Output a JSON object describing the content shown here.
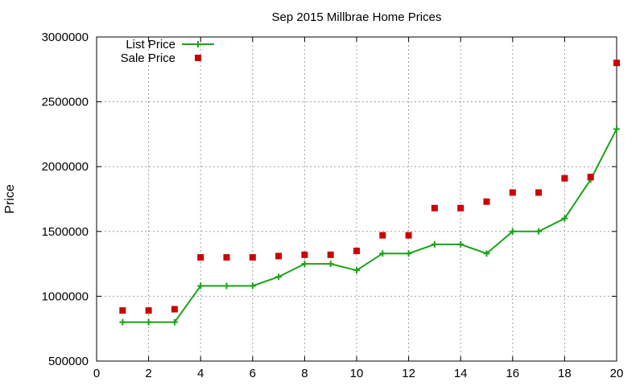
{
  "chart_data": {
    "type": "line",
    "title": "Sep 2015 Millbrae Home Prices",
    "xlabel": "",
    "ylabel": "Price",
    "xlim": [
      0,
      20
    ],
    "ylim": [
      500000,
      3000000
    ],
    "x_ticks": [
      0,
      2,
      4,
      6,
      8,
      10,
      12,
      14,
      16,
      18,
      20
    ],
    "y_ticks": [
      500000,
      1000000,
      1500000,
      2000000,
      2500000,
      3000000
    ],
    "grid": true,
    "legend_position": "top-left",
    "series": [
      {
        "name": "List Price",
        "style": "line-with-plus-markers",
        "color": "#1aa31a",
        "x": [
          1,
          2,
          3,
          4,
          5,
          6,
          7,
          8,
          9,
          10,
          11,
          12,
          13,
          14,
          15,
          16,
          17,
          18,
          19,
          20
        ],
        "values": [
          800000,
          800000,
          800000,
          1080000,
          1080000,
          1080000,
          1150000,
          1250000,
          1250000,
          1200000,
          1330000,
          1330000,
          1400000,
          1400000,
          1330000,
          1500000,
          1500000,
          1600000,
          1900000,
          2290000
        ]
      },
      {
        "name": "Sale Price",
        "style": "square-markers",
        "color": "#cc0000",
        "x": [
          1,
          2,
          3,
          4,
          5,
          6,
          7,
          8,
          9,
          10,
          11,
          12,
          13,
          14,
          15,
          16,
          17,
          18,
          19,
          20
        ],
        "values": [
          890000,
          890000,
          900000,
          1300000,
          1300000,
          1300000,
          1310000,
          1320000,
          1320000,
          1350000,
          1470000,
          1470000,
          1680000,
          1680000,
          1730000,
          1800000,
          1800000,
          1910000,
          1920000,
          2800000
        ]
      }
    ]
  }
}
